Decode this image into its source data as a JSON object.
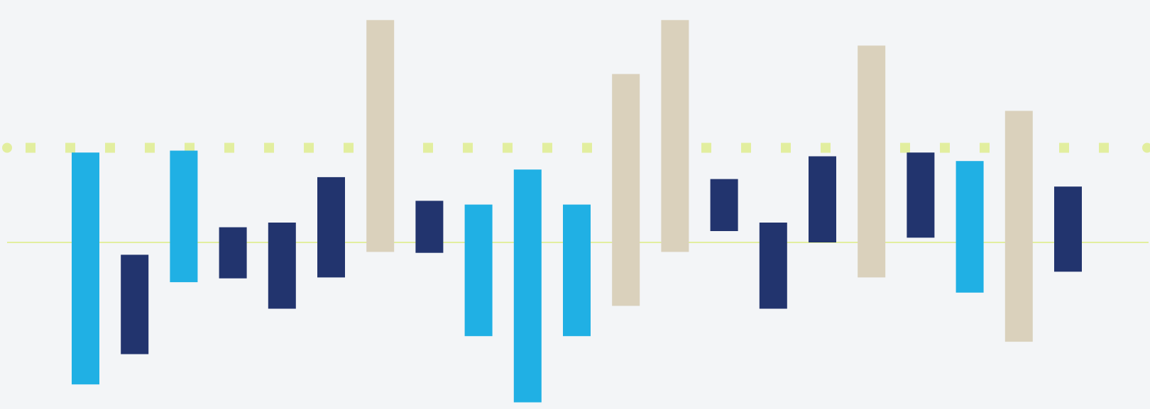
{
  "colors": {
    "background": "#F3F5F7",
    "cyan": "#20B0E4",
    "navy": "#22346E",
    "beige": "#DAD1BC",
    "reference_line": "#E2EE9F"
  },
  "chart_data": {
    "type": "bar",
    "subtype": "floating-range",
    "title": "",
    "xlabel": "",
    "ylabel": "",
    "axes_visible": false,
    "grid": false,
    "legend": "none",
    "baseline": 0,
    "reference_line": {
      "value": 100,
      "style": "dotted"
    },
    "ylim": [
      -160,
      200
    ],
    "bars": [
      {
        "color_key": "cyan",
        "low": -150,
        "high": 95
      },
      {
        "color_key": "navy",
        "low": -118,
        "high": -13
      },
      {
        "color_key": "cyan",
        "low": -42,
        "high": 97
      },
      {
        "color_key": "navy",
        "low": -38,
        "high": 16
      },
      {
        "color_key": "navy",
        "low": -70,
        "high": 21
      },
      {
        "color_key": "navy",
        "low": -37,
        "high": 69
      },
      {
        "color_key": "beige",
        "low": -10,
        "high": 235
      },
      {
        "color_key": "navy",
        "low": -11,
        "high": 44
      },
      {
        "color_key": "cyan",
        "low": -99,
        "high": 40
      },
      {
        "color_key": "cyan",
        "low": -169,
        "high": 77
      },
      {
        "color_key": "cyan",
        "low": -99,
        "high": 40
      },
      {
        "color_key": "beige",
        "low": -67,
        "high": 178
      },
      {
        "color_key": "beige",
        "low": -10,
        "high": 235
      },
      {
        "color_key": "navy",
        "low": 12,
        "high": 67
      },
      {
        "color_key": "navy",
        "low": -70,
        "high": 21
      },
      {
        "color_key": "navy",
        "low": 0,
        "high": 91
      },
      {
        "color_key": "beige",
        "low": -37,
        "high": 208
      },
      {
        "color_key": "navy",
        "low": 5,
        "high": 95
      },
      {
        "color_key": "cyan",
        "low": -53,
        "high": 86
      },
      {
        "color_key": "beige",
        "low": -105,
        "high": 139
      },
      {
        "color_key": "navy",
        "low": -31,
        "high": 59
      }
    ]
  }
}
